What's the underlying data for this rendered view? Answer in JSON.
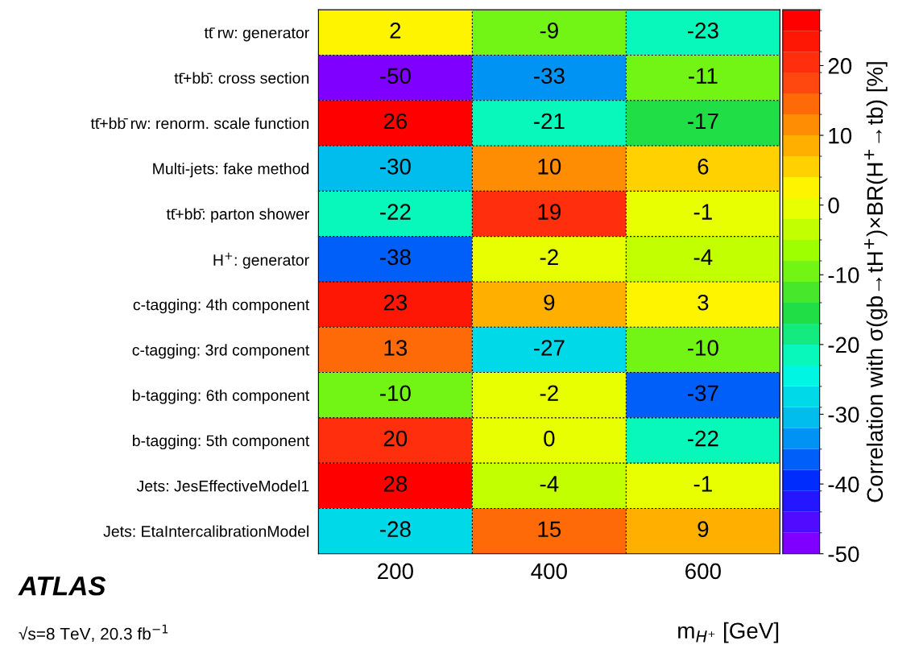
{
  "chart_data": {
    "type": "heatmap",
    "categories": [
      "200",
      "400",
      "600"
    ],
    "y_categories": [
      "tt̄ rw: generator",
      "tt̄+bb̄: cross section",
      "tt̄+bb̄ rw: renorm. scale function",
      "Multi-jets: fake method",
      "tt̄+bb̄: parton shower",
      "H$^{+}$: generator",
      "c-tagging: 4th component",
      "c-tagging: 3rd component",
      "b-tagging: 6th component",
      "b-tagging: 5th component",
      "Jets: JesEffectiveModel1",
      "Jets: EtaIntercalibrationModel"
    ],
    "cells": [
      [
        2,
        -9,
        -23
      ],
      [
        -50,
        -33,
        -11
      ],
      [
        26,
        -21,
        -17
      ],
      [
        -30,
        10,
        6
      ],
      [
        -22,
        19,
        -1
      ],
      [
        -38,
        -2,
        -4
      ],
      [
        23,
        9,
        3
      ],
      [
        13,
        -27,
        -10
      ],
      [
        -10,
        -2,
        -37
      ],
      [
        20,
        0,
        -22
      ],
      [
        28,
        -4,
        -1
      ],
      [
        -28,
        15,
        9
      ]
    ],
    "data_labels": true,
    "grid": true,
    "xlabel": "m$_{H⁺}$ [GeV]",
    "clabel": "Correlation with σ(gb→tH$^{+}$)×BR(H$^{+}$→tb) [%]",
    "clim": [
      -50,
      28
    ],
    "cticks": [
      -50,
      -40,
      -30,
      -20,
      -10,
      0,
      10,
      20
    ],
    "annotations": [
      "ATLAS",
      "√s=8 TeV, 20.3 fb$^{−1}$"
    ]
  }
}
